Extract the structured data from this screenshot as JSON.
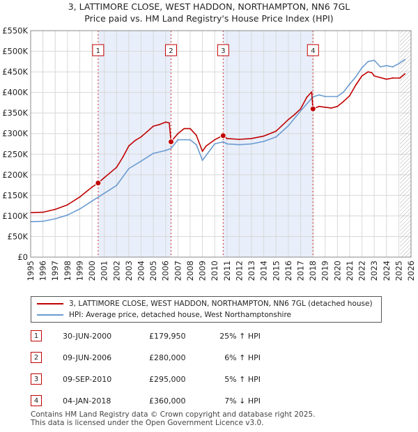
{
  "title_line1": "3, LATTIMORE CLOSE, WEST HADDON, NORTHAMPTON, NN6 7GL",
  "title_line2": "Price paid vs. HM Land Registry's House Price Index (HPI)",
  "colors": {
    "property": "#c00000",
    "hpi": "#6a9bd1",
    "shade": "#e8eefa",
    "hatch": "#999999"
  },
  "chart_data": {
    "type": "line",
    "title": "Price paid vs. HM Land Registry's House Price Index (HPI)",
    "xlabel": "",
    "ylabel": "",
    "xlim": [
      1995,
      2026
    ],
    "ylim": [
      0,
      550000
    ],
    "x_ticks": [
      "1995",
      "1996",
      "1997",
      "1998",
      "1999",
      "2000",
      "2001",
      "2002",
      "2003",
      "2004",
      "2005",
      "2006",
      "2007",
      "2008",
      "2009",
      "2010",
      "2011",
      "2012",
      "2013",
      "2014",
      "2015",
      "2016",
      "2017",
      "2018",
      "2019",
      "2020",
      "2021",
      "2022",
      "2023",
      "2024",
      "2025",
      "2026"
    ],
    "y_ticks": [
      {
        "value": 0,
        "label": "£0"
      },
      {
        "value": 50000,
        "label": "£50K"
      },
      {
        "value": 100000,
        "label": "£100K"
      },
      {
        "value": 150000,
        "label": "£150K"
      },
      {
        "value": 200000,
        "label": "£200K"
      },
      {
        "value": 250000,
        "label": "£250K"
      },
      {
        "value": 300000,
        "label": "£300K"
      },
      {
        "value": 350000,
        "label": "£350K"
      },
      {
        "value": 400000,
        "label": "£400K"
      },
      {
        "value": 450000,
        "label": "£450K"
      },
      {
        "value": 500000,
        "label": "£500K"
      },
      {
        "value": 550000,
        "label": "£550K"
      }
    ],
    "grid": true,
    "shaded_ranges": [
      [
        2000.5,
        2006.44
      ],
      [
        2010.69,
        2018.01
      ]
    ],
    "forecast_from": 2025.1,
    "series": [
      {
        "name": "3, LATTIMORE CLOSE, WEST HADDON, NORTHAMPTON, NN6 7GL (detached house)",
        "color": "#c00000",
        "x": [
          1995,
          1996,
          1997,
          1998,
          1999,
          2000,
          2000.5,
          2001,
          2002,
          2002.5,
          2003,
          2003.5,
          2004,
          2004.5,
          2005,
          2005.5,
          2006,
          2006.3,
          2006.44,
          2007,
          2007.5,
          2008,
          2008.5,
          2009,
          2009.3,
          2010,
          2010.5,
          2010.69,
          2011,
          2012,
          2013,
          2014,
          2015,
          2015.5,
          2016,
          2016.5,
          2017,
          2017.5,
          2017.9,
          2018.01,
          2018.5,
          2019,
          2019.5,
          2020,
          2020.5,
          2021,
          2021.5,
          2022,
          2022.5,
          2022.8,
          2023,
          2023.5,
          2024,
          2024.5,
          2025.1,
          2025.5
        ],
        "values": [
          108000,
          109000,
          116000,
          127000,
          146000,
          170000,
          179950,
          193000,
          218000,
          242000,
          270000,
          283000,
          292000,
          305000,
          318000,
          322000,
          328000,
          326000,
          280000,
          300000,
          312000,
          312000,
          296000,
          257000,
          270000,
          285000,
          293000,
          295000,
          288000,
          286000,
          288000,
          294000,
          306000,
          320000,
          334000,
          346000,
          360000,
          388000,
          401000,
          360000,
          366000,
          364000,
          362000,
          366000,
          378000,
          392000,
          418000,
          440000,
          450000,
          448000,
          440000,
          436000,
          432000,
          435000,
          435000,
          445000
        ]
      },
      {
        "name": "HPI: Average price, detached house, West Northamptonshire",
        "color": "#6a9bd1",
        "x": [
          1995,
          1996,
          1997,
          1998,
          1999,
          2000,
          2001,
          2002,
          2003,
          2004,
          2005,
          2006,
          2006.44,
          2007,
          2008,
          2008.5,
          2009,
          2009.3,
          2010,
          2010.69,
          2011,
          2012,
          2013,
          2014,
          2015,
          2016,
          2017,
          2018,
          2018.5,
          2019,
          2020,
          2020.5,
          2021,
          2021.5,
          2022,
          2022.5,
          2023,
          2023.5,
          2024,
          2024.5,
          2025,
          2025.5
        ],
        "values": [
          86000,
          87000,
          93000,
          102000,
          117000,
          136000,
          155000,
          174000,
          215000,
          233000,
          252000,
          259000,
          264000,
          285000,
          285000,
          273000,
          235000,
          247000,
          275000,
          280000,
          275000,
          273000,
          275000,
          281000,
          292000,
          319000,
          355000,
          389000,
          394000,
          390000,
          390000,
          401000,
          420000,
          438000,
          460000,
          475000,
          478000,
          462000,
          465000,
          462000,
          470000,
          480000
        ]
      }
    ]
  },
  "sale_markers": [
    {
      "num": "1",
      "x": 2000.5,
      "value": 179950
    },
    {
      "num": "2",
      "x": 2006.44,
      "value": 280000
    },
    {
      "num": "3",
      "x": 2010.69,
      "value": 295000
    },
    {
      "num": "4",
      "x": 2018.01,
      "value": 360000
    }
  ],
  "legend": {
    "property_label": "3, LATTIMORE CLOSE, WEST HADDON, NORTHAMPTON, NN6 7GL (detached house)",
    "hpi_label": "HPI: Average price, detached house, West Northamptonshire"
  },
  "sales": [
    {
      "num": "1",
      "date": "30-JUN-2000",
      "price": "£179,950",
      "hpi": "25% ↑ HPI"
    },
    {
      "num": "2",
      "date": "09-JUN-2006",
      "price": "£280,000",
      "hpi": "6% ↑ HPI"
    },
    {
      "num": "3",
      "date": "09-SEP-2010",
      "price": "£295,000",
      "hpi": "5% ↑ HPI"
    },
    {
      "num": "4",
      "date": "04-JAN-2018",
      "price": "£360,000",
      "hpi": "7% ↓ HPI"
    }
  ],
  "footer": {
    "line1": "Contains HM Land Registry data © Crown copyright and database right 2025.",
    "line2": "This data is licensed under the Open Government Licence v3.0."
  }
}
